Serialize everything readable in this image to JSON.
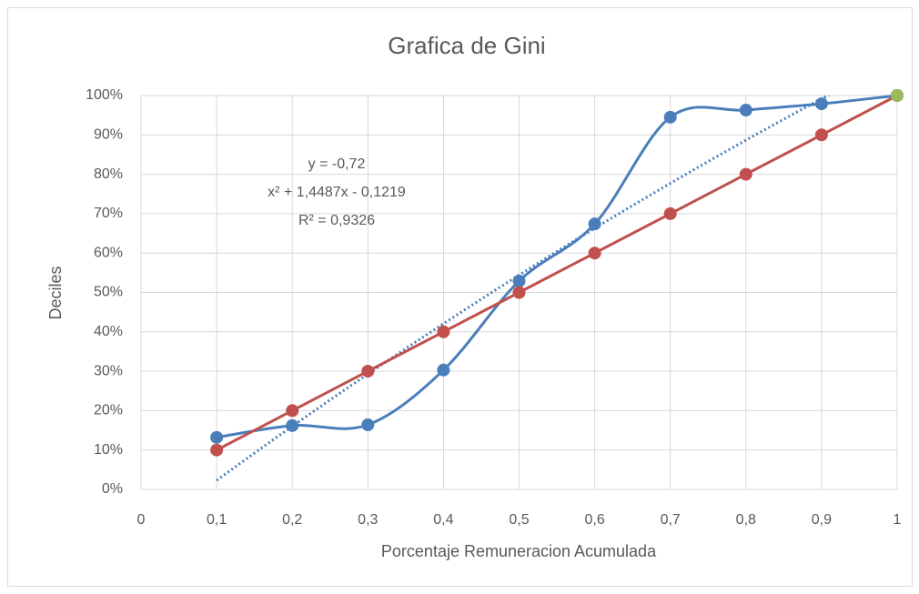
{
  "chart_data": {
    "type": "line",
    "title": "Grafica de Gini",
    "x_label": "Porcentaje Remuneracion Acumulada",
    "y_label": "Deciles",
    "x": [
      0.1,
      0.2,
      0.3,
      0.4,
      0.5,
      0.6,
      0.7,
      0.8,
      0.9,
      1
    ],
    "series": [
      {
        "color": "#4a7ebb",
        "smooth": true,
        "trendline": "polynomial-2",
        "values": [
          13.2,
          16.2,
          16.4,
          30.3,
          52.9,
          67.4,
          94.5,
          96.3,
          97.9,
          100
        ]
      },
      {
        "color": "#c0504d",
        "smooth": false,
        "values": [
          10,
          20,
          30,
          40,
          50,
          60,
          70,
          80,
          90,
          100
        ]
      },
      {
        "color": "#9bbb59",
        "smooth": false,
        "values": [
          null,
          null,
          null,
          null,
          null,
          null,
          null,
          null,
          null,
          100
        ]
      }
    ],
    "annotation": [
      "y = -0,72",
      "x² + 1,4487x - 0,1219",
      "R² = 0,9326"
    ],
    "xlim": [
      0,
      1
    ],
    "xticks": [
      0,
      {
        "value": 0.1,
        "label": "0,1"
      },
      {
        "value": 0.2,
        "label": "0,2"
      },
      {
        "value": 0.3,
        "label": "0,3"
      },
      {
        "value": 0.4,
        "label": "0,4"
      },
      {
        "value": 0.5,
        "label": "0,5"
      },
      {
        "value": 0.6,
        "label": "0,6"
      },
      {
        "value": 0.7,
        "label": "0,7"
      },
      {
        "value": 0.8,
        "label": "0,8"
      },
      {
        "value": 0.9,
        "label": "0,9"
      },
      1
    ],
    "ylim": [
      0,
      100
    ],
    "yticks": [
      {
        "value": 0,
        "label": "0%"
      },
      {
        "value": 10,
        "label": "10%"
      },
      {
        "value": 20,
        "label": "20%"
      },
      {
        "value": 30,
        "label": "30%"
      },
      {
        "value": 40,
        "label": "40%"
      },
      {
        "value": 50,
        "label": "50%"
      },
      {
        "value": 60,
        "label": "60%"
      },
      {
        "value": 70,
        "label": "70%"
      },
      {
        "value": 80,
        "label": "80%"
      },
      {
        "value": 90,
        "label": "90%"
      },
      {
        "value": 100,
        "label": "100%"
      }
    ],
    "grid": true
  }
}
